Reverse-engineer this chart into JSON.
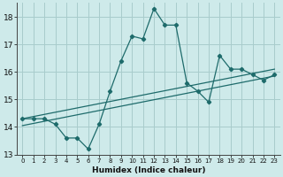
{
  "xlabel": "Humidex (Indice chaleur)",
  "background_color": "#ceeaea",
  "grid_color": "#a8cccc",
  "line_color": "#1e6b6b",
  "x_data": [
    0,
    1,
    2,
    3,
    4,
    5,
    6,
    7,
    8,
    9,
    10,
    11,
    12,
    13,
    14,
    15,
    16,
    17,
    18,
    19,
    20,
    21,
    22,
    23
  ],
  "y_main": [
    14.3,
    14.3,
    14.3,
    14.1,
    13.6,
    13.6,
    13.2,
    14.1,
    15.3,
    16.4,
    17.3,
    17.2,
    18.3,
    17.7,
    17.7,
    15.6,
    15.3,
    14.9,
    16.6,
    16.1,
    16.1,
    15.9,
    15.7,
    15.9
  ],
  "y_trend1_start": 14.3,
  "y_trend1_end": 16.1,
  "y_trend2_start": 14.05,
  "y_trend2_end": 15.85,
  "ylim": [
    13.0,
    18.5
  ],
  "xlim": [
    -0.5,
    23.5
  ],
  "yticks": [
    13,
    14,
    15,
    16,
    17,
    18
  ],
  "xtick_labels": [
    "0",
    "1",
    "2",
    "3",
    "4",
    "5",
    "6",
    "7",
    "8",
    "9",
    "10",
    "11",
    "12",
    "13",
    "14",
    "15",
    "16",
    "17",
    "18",
    "19",
    "20",
    "21",
    "22",
    "23"
  ]
}
